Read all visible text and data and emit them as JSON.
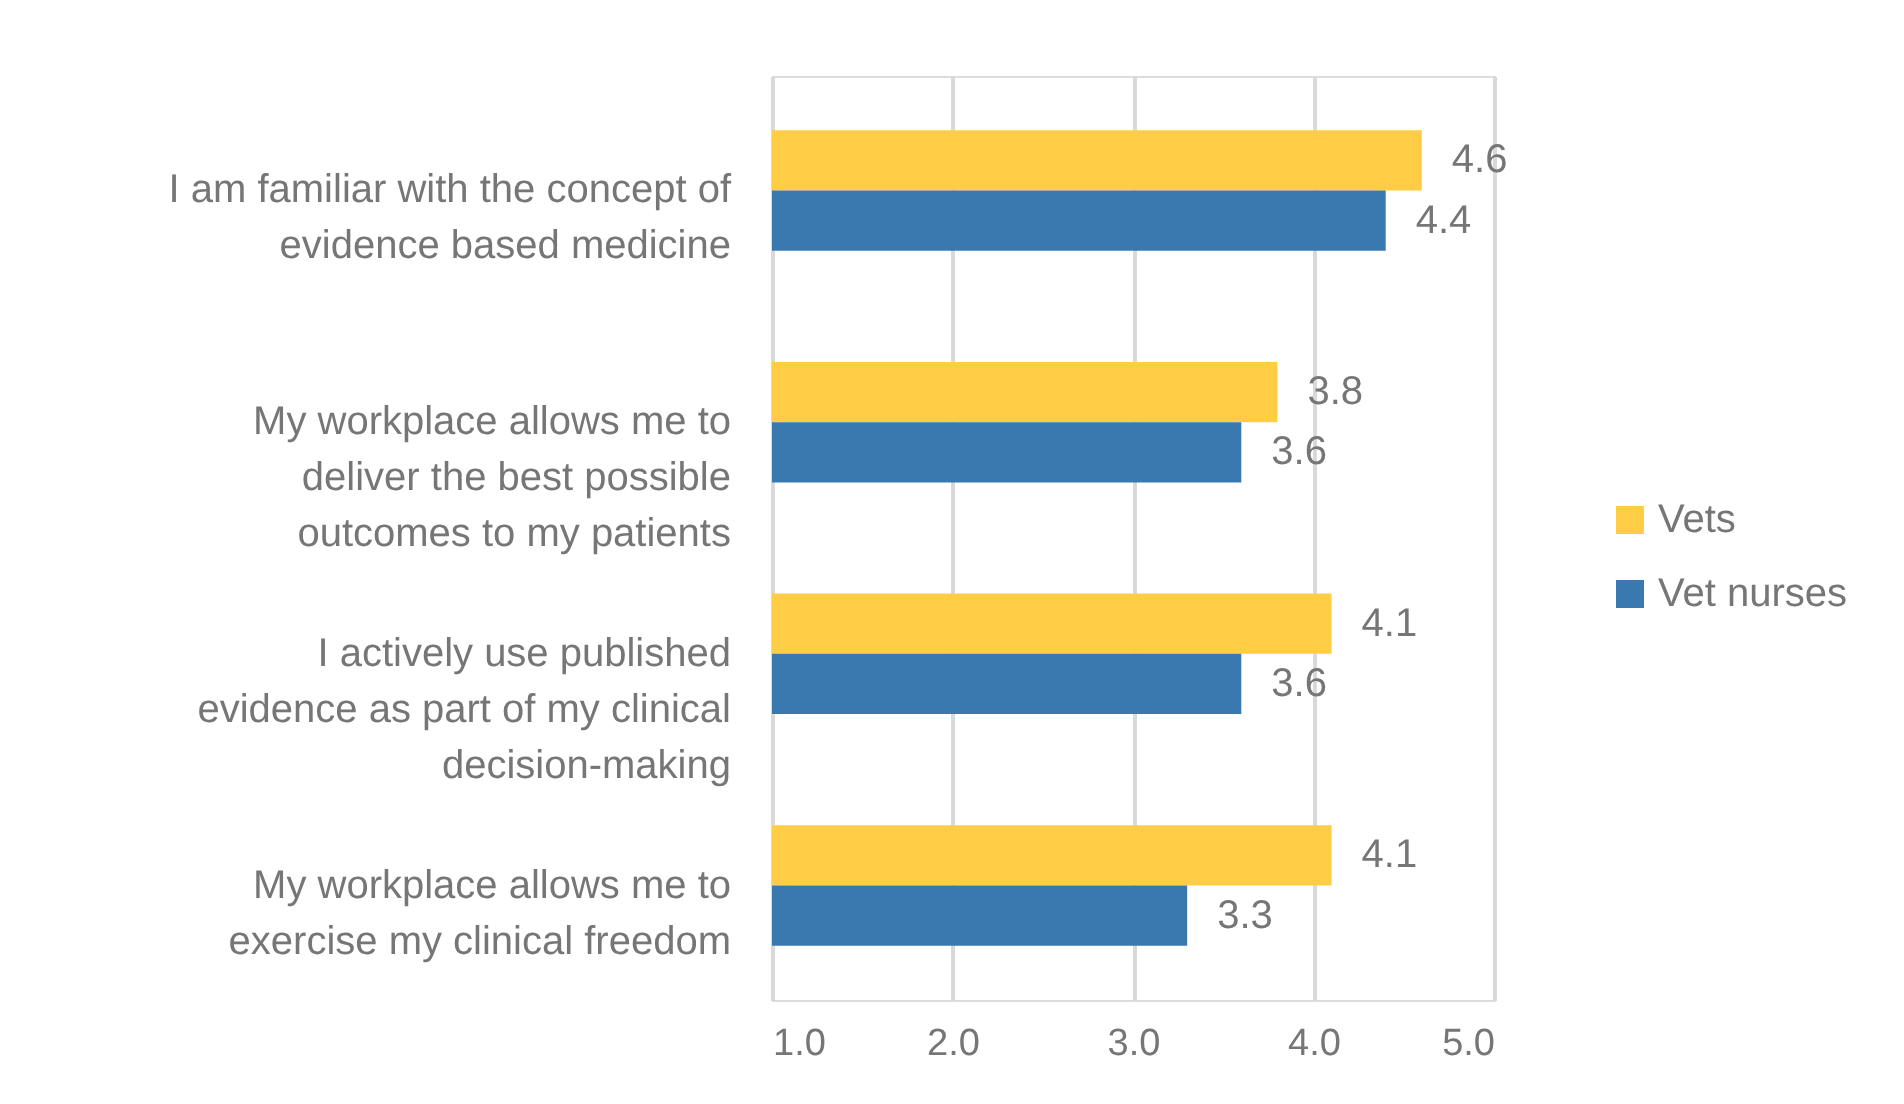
{
  "chart_data": {
    "type": "bar",
    "orientation": "horizontal",
    "categories": [
      "I am familiar with the concept of\nevidence based medicine",
      "My workplace allows me to\ndeliver the best possible\noutcomes to my patients",
      "I actively use published\nevidence as part of my clinical\ndecision-making",
      "My workplace allows me to\nexercise my clinical freedom"
    ],
    "series": [
      {
        "name": "Vets",
        "color": "#ffcd45",
        "values": [
          4.6,
          3.8,
          4.1,
          4.1
        ]
      },
      {
        "name": "Vet nurses",
        "color": "#3a78b0",
        "values": [
          4.4,
          3.6,
          3.6,
          3.3
        ]
      }
    ],
    "xlim": [
      1,
      5
    ],
    "xticks": [
      {
        "value": 1,
        "label": "1.0"
      },
      {
        "value": 2,
        "label": "2.0"
      },
      {
        "value": 3,
        "label": "3.0"
      },
      {
        "value": 4,
        "label": "4.0"
      },
      {
        "value": 5,
        "label": "5.0"
      }
    ],
    "grid": "x",
    "legend": "right",
    "data_labels": true
  }
}
